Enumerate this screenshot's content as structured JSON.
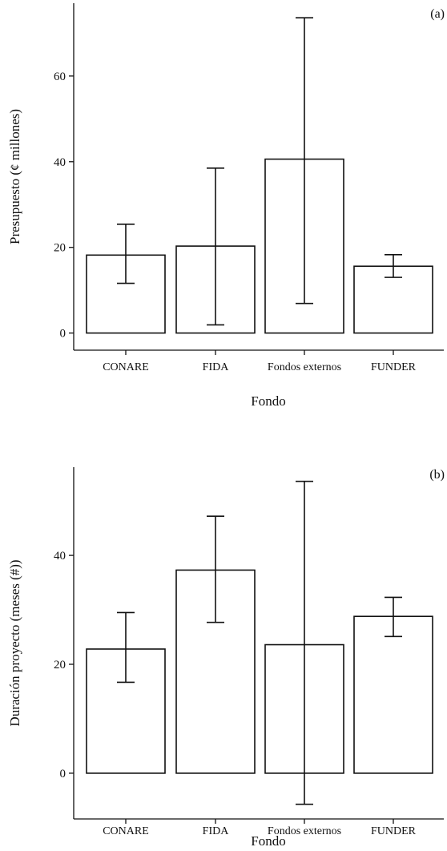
{
  "chart_data": [
    {
      "type": "bar",
      "panel_tag": "(a)",
      "categories": [
        "CONARE",
        "FIDA",
        "Fondos externos",
        "FUNDER"
      ],
      "values": [
        18.2,
        20.3,
        40.6,
        15.6
      ],
      "error_low": [
        11.6,
        1.9,
        6.9,
        13.0
      ],
      "error_high": [
        25.4,
        38.5,
        73.6,
        18.3
      ],
      "ylabel": "Presupuesto (¢ millones)",
      "xlabel": "Fondo",
      "yticks": [
        0,
        20,
        40,
        60
      ],
      "ylim": [
        -4,
        77
      ],
      "grid": false
    },
    {
      "type": "bar",
      "panel_tag": "(b)",
      "categories": [
        "CONARE",
        "FIDA",
        "Fondos externos",
        "FUNDER"
      ],
      "values": [
        22.8,
        37.3,
        23.6,
        28.8
      ],
      "error_low": [
        16.7,
        27.7,
        -5.7,
        25.1
      ],
      "error_high": [
        29.5,
        47.2,
        53.6,
        32.3
      ],
      "ylabel": "Duración proyecto (meses (#))",
      "xlabel": "Fondo",
      "yticks": [
        0,
        20,
        40
      ],
      "ylim": [
        -8.4,
        56.2
      ],
      "grid": false
    }
  ]
}
